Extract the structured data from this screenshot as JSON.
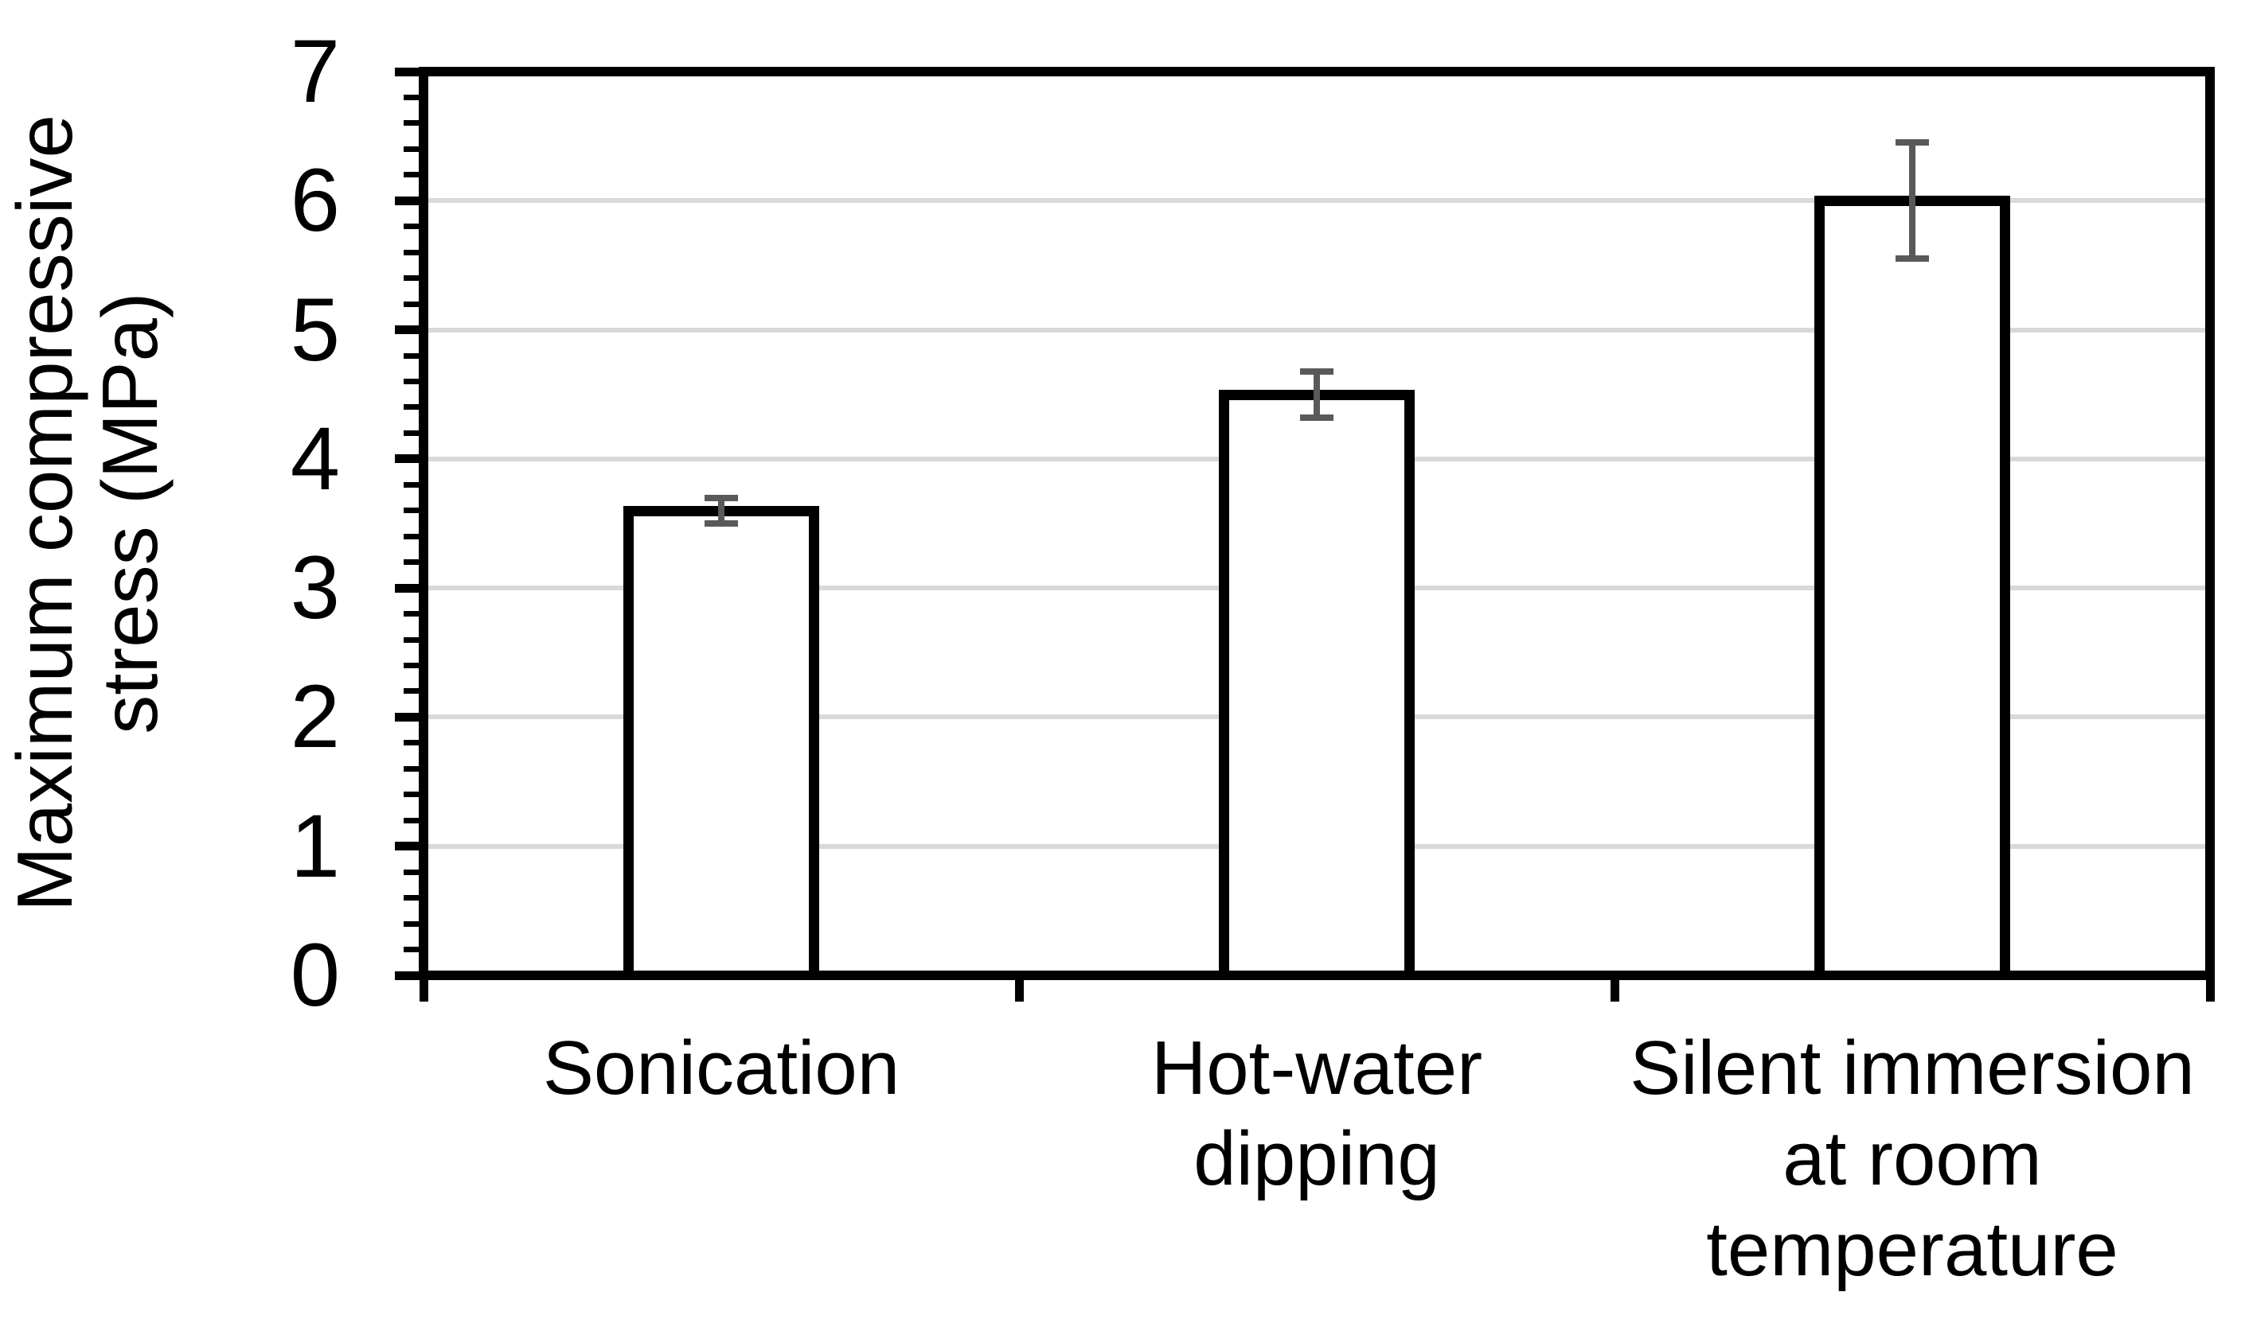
{
  "chart_data": {
    "type": "bar",
    "title": "",
    "categories": [
      "Sonication",
      "Hot-water dipping",
      "Silent immersion at room temperature"
    ],
    "categories_lines": [
      [
        "Sonication"
      ],
      [
        "Hot-water",
        "dipping"
      ],
      [
        "Silent immersion",
        "at room",
        "temperature"
      ]
    ],
    "values": [
      3.6,
      4.5,
      6.0
    ],
    "error_bars": [
      0.1,
      0.18,
      0.45
    ],
    "xlabel": "",
    "ylabel": "Maximum compressive stress (MPa)",
    "ylabel_lines": {
      "line1": "Maximum compressive",
      "line2": "stress (MPa)"
    },
    "ylim": [
      0,
      7
    ],
    "ytick_interval": 1,
    "ytick_labels": [
      "0",
      "1",
      "2",
      "3",
      "4",
      "5",
      "6",
      "7"
    ],
    "minor_tick_interval": 0.2,
    "grid": "horizontal major gridlines",
    "legend": "none",
    "bar_fill": "#ffffff",
    "bar_border_color": "#000000",
    "error_bar_color": "#595959",
    "gridline_color": "#d9d9d9",
    "axis_color": "#000000",
    "background_color": "#ffffff"
  }
}
